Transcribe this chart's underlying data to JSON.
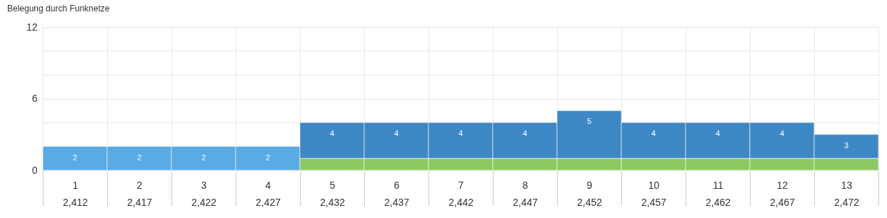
{
  "chart_data": {
    "type": "bar",
    "title": "Belegung durch Funknetze",
    "categories": [
      "1\n2,412",
      "2\n2,417",
      "3\n2,422",
      "4\n2,427",
      "5\n2,432",
      "6\n2,437",
      "7\n2,442",
      "8\n2,447",
      "9\n2,452",
      "10\n2,457",
      "11\n2,462",
      "12\n2,467",
      "13\n2,472"
    ],
    "stacked": true,
    "series": [
      {
        "color": "#5aaae4",
        "values": [
          2,
          2,
          2,
          2,
          null,
          null,
          null,
          null,
          null,
          null,
          null,
          null,
          null
        ]
      },
      {
        "color": "#8cc963",
        "values": [
          null,
          null,
          null,
          null,
          1,
          1,
          1,
          1,
          1,
          1,
          1,
          1,
          1
        ]
      },
      {
        "color": "#3d87c4",
        "values": [
          null,
          null,
          null,
          null,
          3,
          3,
          3,
          3,
          4,
          3,
          3,
          3,
          2
        ]
      }
    ],
    "totals": [
      "2",
      "2",
      "2",
      "2",
      "4",
      "4",
      "4",
      "4",
      "5",
      "4",
      "4",
      "4",
      "3"
    ],
    "ylim": [
      0,
      12
    ],
    "yticks": [
      0,
      {
        "value": 4,
        "label": null
      },
      6,
      {
        "value": 8,
        "label": null
      },
      {
        "value": 10,
        "label": null
      },
      12
    ],
    "grid": true
  }
}
